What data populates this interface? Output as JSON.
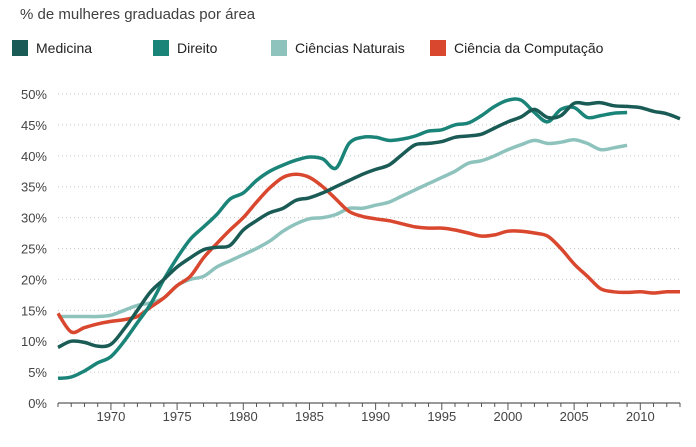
{
  "chart_data": {
    "type": "line",
    "title": "% de mulheres graduadas por área",
    "xlabel": "",
    "ylabel": "",
    "xlim": [
      1966,
      2013
    ],
    "ylim": [
      0,
      50
    ],
    "xticks": [
      1970,
      1975,
      1980,
      1985,
      1990,
      1995,
      2000,
      2005,
      2010
    ],
    "yticks": [
      0,
      5,
      10,
      15,
      20,
      25,
      30,
      35,
      40,
      45,
      50
    ],
    "ytick_labels": [
      "0%",
      "5%",
      "10%",
      "15%",
      "20%",
      "25%",
      "30%",
      "35%",
      "40%",
      "45%",
      "50%"
    ],
    "grid": "horizontal dotted",
    "legend_position": "top",
    "series": [
      {
        "name": "Medicina",
        "color": "#1a5c55",
        "x": [
          1966,
          1967,
          1968,
          1969,
          1970,
          1971,
          1972,
          1973,
          1974,
          1975,
          1976,
          1977,
          1978,
          1979,
          1980,
          1981,
          1982,
          1983,
          1984,
          1985,
          1986,
          1987,
          1988,
          1989,
          1990,
          1991,
          1992,
          1993,
          1994,
          1995,
          1996,
          1997,
          1998,
          1999,
          2000,
          2001,
          2002,
          2003,
          2004,
          2005,
          2006,
          2007,
          2008,
          2009,
          2010,
          2011,
          2012,
          2013
        ],
        "y": [
          9,
          10,
          9.8,
          9.2,
          9.5,
          12,
          15,
          18,
          20,
          22,
          23.5,
          24.8,
          25.2,
          25.5,
          28,
          29.5,
          30.8,
          31.5,
          32.8,
          33.2,
          34,
          35,
          36,
          37,
          37.8,
          38.5,
          40.2,
          41.8,
          42,
          42.3,
          43,
          43.2,
          43.5,
          44.5,
          45.5,
          46.3,
          47.5,
          46.2,
          46.5,
          48.5,
          48.4,
          48.6,
          48.1,
          48,
          47.8,
          47.2,
          46.8,
          46
        ]
      },
      {
        "name": "Direito",
        "color": "#1b8479",
        "x": [
          1966,
          1967,
          1968,
          1969,
          1970,
          1971,
          1972,
          1973,
          1974,
          1975,
          1976,
          1977,
          1978,
          1979,
          1980,
          1981,
          1982,
          1983,
          1984,
          1985,
          1986,
          1987,
          1988,
          1989,
          1990,
          1991,
          1992,
          1993,
          1994,
          1995,
          1996,
          1997,
          1998,
          1999,
          2000,
          2001,
          2002,
          2003,
          2004,
          2005,
          2006,
          2007,
          2008,
          2009
        ],
        "y": [
          4,
          4.2,
          5.2,
          6.5,
          7.5,
          10,
          13,
          16,
          20,
          23.5,
          26.5,
          28.5,
          30.5,
          33,
          34,
          36,
          37.5,
          38.5,
          39.3,
          39.8,
          39.5,
          38,
          42,
          43,
          43,
          42.5,
          42.7,
          43.2,
          44,
          44.2,
          45,
          45.3,
          46.5,
          48,
          49,
          49,
          47,
          45.5,
          47.5,
          47.8,
          46.2,
          46.5,
          46.9,
          47
        ]
      },
      {
        "name": "Ciências Naturais",
        "color": "#8ec3bd",
        "x": [
          1966,
          1967,
          1968,
          1969,
          1970,
          1971,
          1972,
          1973,
          1974,
          1975,
          1976,
          1977,
          1978,
          1979,
          1980,
          1981,
          1982,
          1983,
          1984,
          1985,
          1986,
          1987,
          1988,
          1989,
          1990,
          1991,
          1992,
          1993,
          1994,
          1995,
          1996,
          1997,
          1998,
          1999,
          2000,
          2001,
          2002,
          2003,
          2004,
          2005,
          2006,
          2007,
          2008,
          2009
        ],
        "y": [
          14,
          14,
          14,
          14,
          14.2,
          15,
          15.8,
          16.2,
          17,
          19,
          20,
          20.5,
          22,
          23,
          24,
          25,
          26.2,
          27.8,
          29,
          29.8,
          30,
          30.5,
          31.5,
          31.5,
          32,
          32.5,
          33.5,
          34.5,
          35.5,
          36.5,
          37.5,
          38.8,
          39.2,
          40,
          41,
          41.8,
          42.5,
          42,
          42.2,
          42.6,
          42,
          41,
          41.3,
          41.7
        ]
      },
      {
        "name": "Ciência da Computação",
        "color": "#d9472e",
        "x": [
          1966,
          1967,
          1968,
          1969,
          1970,
          1971,
          1972,
          1973,
          1974,
          1975,
          1976,
          1977,
          1978,
          1979,
          1980,
          1981,
          1982,
          1983,
          1984,
          1985,
          1986,
          1987,
          1988,
          1989,
          1990,
          1991,
          1992,
          1993,
          1994,
          1995,
          1996,
          1997,
          1998,
          1999,
          2000,
          2001,
          2002,
          2003,
          2004,
          2005,
          2006,
          2007,
          2008,
          2009,
          2010,
          2011,
          2012,
          2013
        ],
        "y": [
          14.5,
          11.5,
          12.2,
          12.8,
          13.2,
          13.5,
          14,
          15.5,
          17,
          19,
          20.5,
          23.5,
          25.8,
          28,
          30,
          32.5,
          34.8,
          36.5,
          37,
          36.5,
          35,
          33,
          31,
          30.2,
          29.8,
          29.5,
          29,
          28.5,
          28.3,
          28.3,
          28,
          27.5,
          27,
          27.2,
          27.8,
          27.8,
          27.5,
          27,
          25,
          22.5,
          20.5,
          18.5,
          18,
          17.9,
          18,
          17.8,
          18,
          18
        ]
      }
    ]
  }
}
